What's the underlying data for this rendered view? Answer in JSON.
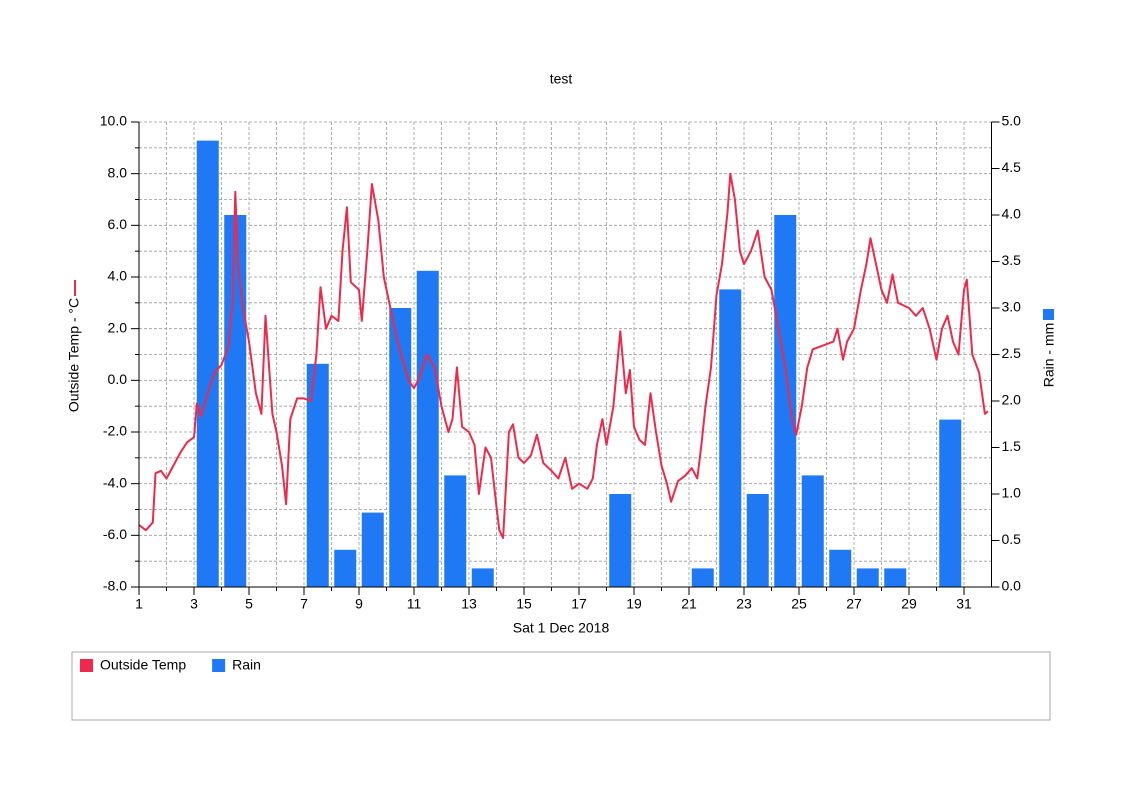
{
  "chart_data": {
    "type": "combo",
    "title": "test",
    "xlabel": "Sat 1 Dec 2018",
    "ylabel": "Outside Temp - °C",
    "y2label": "Rain - mm",
    "xlim": [
      1,
      32
    ],
    "xticks": [
      1,
      3,
      5,
      7,
      9,
      11,
      13,
      15,
      17,
      19,
      21,
      23,
      25,
      27,
      29,
      31
    ],
    "xminorticks": [
      2,
      4,
      6,
      8,
      10,
      12,
      14,
      16,
      18,
      20,
      22,
      24,
      26,
      28,
      30
    ],
    "ylim": [
      -8,
      10
    ],
    "yticks": [
      {
        "value": -8,
        "label": "-8.0"
      },
      {
        "value": -6,
        "label": "-6.0"
      },
      {
        "value": -4,
        "label": "-4.0"
      },
      {
        "value": -2,
        "label": "-2.0"
      },
      {
        "value": 0,
        "label": "0.0"
      },
      {
        "value": 2,
        "label": "2.0"
      },
      {
        "value": 4,
        "label": "4.0"
      },
      {
        "value": 6,
        "label": "6.0"
      },
      {
        "value": 8,
        "label": "8.0"
      },
      {
        "value": 10,
        "label": "10.0"
      }
    ],
    "yminorticks": [
      -7,
      -5,
      -3,
      -1,
      1,
      3,
      5,
      7,
      9
    ],
    "y2lim": [
      0,
      5
    ],
    "y2ticks": [
      {
        "value": 0,
        "label": "0.0"
      },
      {
        "value": 0.5,
        "label": "0.5"
      },
      {
        "value": 1,
        "label": "1.0"
      },
      {
        "value": 1.5,
        "label": "1.5"
      },
      {
        "value": 2,
        "label": "2.0"
      },
      {
        "value": 2.5,
        "label": "2.5"
      },
      {
        "value": 3,
        "label": "3.0"
      },
      {
        "value": 3.5,
        "label": "3.5"
      },
      {
        "value": 4,
        "label": "4.0"
      },
      {
        "value": 4.5,
        "label": "4.5"
      },
      {
        "value": 5,
        "label": "5.0"
      }
    ],
    "grid": true,
    "legend": "bottom",
    "series": [
      {
        "name": "Outside Temp",
        "type": "line",
        "color": "#f0284a",
        "axis": "y",
        "x": [
          1,
          1.25,
          1.5,
          1.6,
          1.8,
          2,
          2.25,
          2.5,
          2.75,
          3,
          3.1,
          3.25,
          3.5,
          3.75,
          4,
          4.25,
          4.4,
          4.5,
          4.6,
          4.75,
          5,
          5.25,
          5.45,
          5.6,
          5.85,
          6,
          6.2,
          6.35,
          6.5,
          6.75,
          7,
          7.25,
          7.45,
          7.6,
          7.8,
          8,
          8.25,
          8.4,
          8.56,
          8.7,
          9,
          9.1,
          9.3,
          9.47,
          9.7,
          9.9,
          10.1,
          10.4,
          10.8,
          11,
          11.2,
          11.47,
          11.75,
          12,
          12.25,
          12.4,
          12.56,
          12.75,
          13,
          13.2,
          13.36,
          13.6,
          13.8,
          14,
          14.1,
          14.24,
          14.45,
          14.6,
          14.8,
          15,
          15.25,
          15.47,
          15.7,
          16,
          16.25,
          16.5,
          16.75,
          17,
          17.3,
          17.5,
          17.65,
          17.85,
          18,
          18.25,
          18.5,
          18.7,
          18.85,
          19,
          19.2,
          19.4,
          19.6,
          19.8,
          20,
          20.2,
          20.35,
          20.6,
          20.85,
          21.1,
          21.3,
          21.45,
          21.6,
          21.8,
          22,
          22.2,
          22.4,
          22.5,
          22.67,
          22.85,
          23,
          23.25,
          23.5,
          23.75,
          24,
          24.25,
          24.5,
          24.75,
          24.9,
          25.1,
          25.3,
          25.5,
          25.75,
          26,
          26.25,
          26.4,
          26.6,
          26.75,
          27,
          27.25,
          27.45,
          27.6,
          27.8,
          28,
          28.2,
          28.4,
          28.6,
          28.8,
          29,
          29.25,
          29.5,
          29.75,
          30,
          30.2,
          30.4,
          30.6,
          30.8,
          31,
          31.1,
          31.3,
          31.55,
          31.76,
          31.87
        ],
        "values": [
          -5.6,
          -5.8,
          -5.5,
          -3.6,
          -3.5,
          -3.8,
          -3.3,
          -2.8,
          -2.4,
          -2.2,
          -0.9,
          -1.4,
          -0.5,
          0.3,
          0.6,
          1.3,
          3.0,
          7.3,
          4.5,
          3.0,
          1.5,
          -0.5,
          -1.3,
          2.5,
          -1.3,
          -2.0,
          -3.3,
          -4.8,
          -1.5,
          -0.7,
          -0.7,
          -0.8,
          1.0,
          3.6,
          2.0,
          2.5,
          2.3,
          5.0,
          6.7,
          3.8,
          3.5,
          2.3,
          5.0,
          7.6,
          6.2,
          4.0,
          3.0,
          1.5,
          0.0,
          -0.3,
          0.1,
          1.0,
          0.5,
          -1.0,
          -2.0,
          -1.5,
          0.5,
          -1.8,
          -2.0,
          -2.5,
          -4.4,
          -2.6,
          -3.0,
          -4.9,
          -5.8,
          -6.1,
          -2.0,
          -1.7,
          -3.0,
          -3.2,
          -2.9,
          -2.1,
          -3.2,
          -3.5,
          -3.8,
          -3.0,
          -4.2,
          -4.0,
          -4.2,
          -3.8,
          -2.5,
          -1.5,
          -2.5,
          -1.0,
          1.9,
          -0.5,
          0.4,
          -1.8,
          -2.3,
          -2.5,
          -0.5,
          -2.0,
          -3.3,
          -4.0,
          -4.7,
          -3.9,
          -3.7,
          -3.4,
          -3.8,
          -2.5,
          -1.0,
          0.5,
          3.3,
          4.5,
          6.5,
          8.0,
          7.0,
          5.0,
          4.5,
          5.0,
          5.8,
          4.0,
          3.5,
          2.0,
          0.5,
          -1.5,
          -2.1,
          -1.0,
          0.5,
          1.2,
          1.3,
          1.4,
          1.5,
          2.0,
          0.8,
          1.5,
          2.0,
          3.5,
          4.5,
          5.5,
          4.5,
          3.5,
          3.0,
          4.1,
          3.0,
          2.9,
          2.8,
          2.5,
          2.8,
          2.0,
          0.8,
          2.0,
          2.5,
          1.5,
          1.0,
          3.5,
          3.9,
          1.0,
          0.3,
          -1.3,
          -1.2
        ]
      },
      {
        "name": "Rain",
        "type": "bar",
        "color": "#2079f4",
        "axis": "y2",
        "x": [
          3,
          4,
          7,
          8,
          9,
          10,
          11,
          12,
          13,
          18,
          21,
          22,
          23,
          24,
          25,
          26,
          27,
          28,
          30
        ],
        "values": [
          4.8,
          4.0,
          2.4,
          0.4,
          0.8,
          3.0,
          3.4,
          1.2,
          0.2,
          1.0,
          0.2,
          3.2,
          1.0,
          4.0,
          1.2,
          0.4,
          0.2,
          0.2,
          1.8
        ]
      }
    ]
  }
}
